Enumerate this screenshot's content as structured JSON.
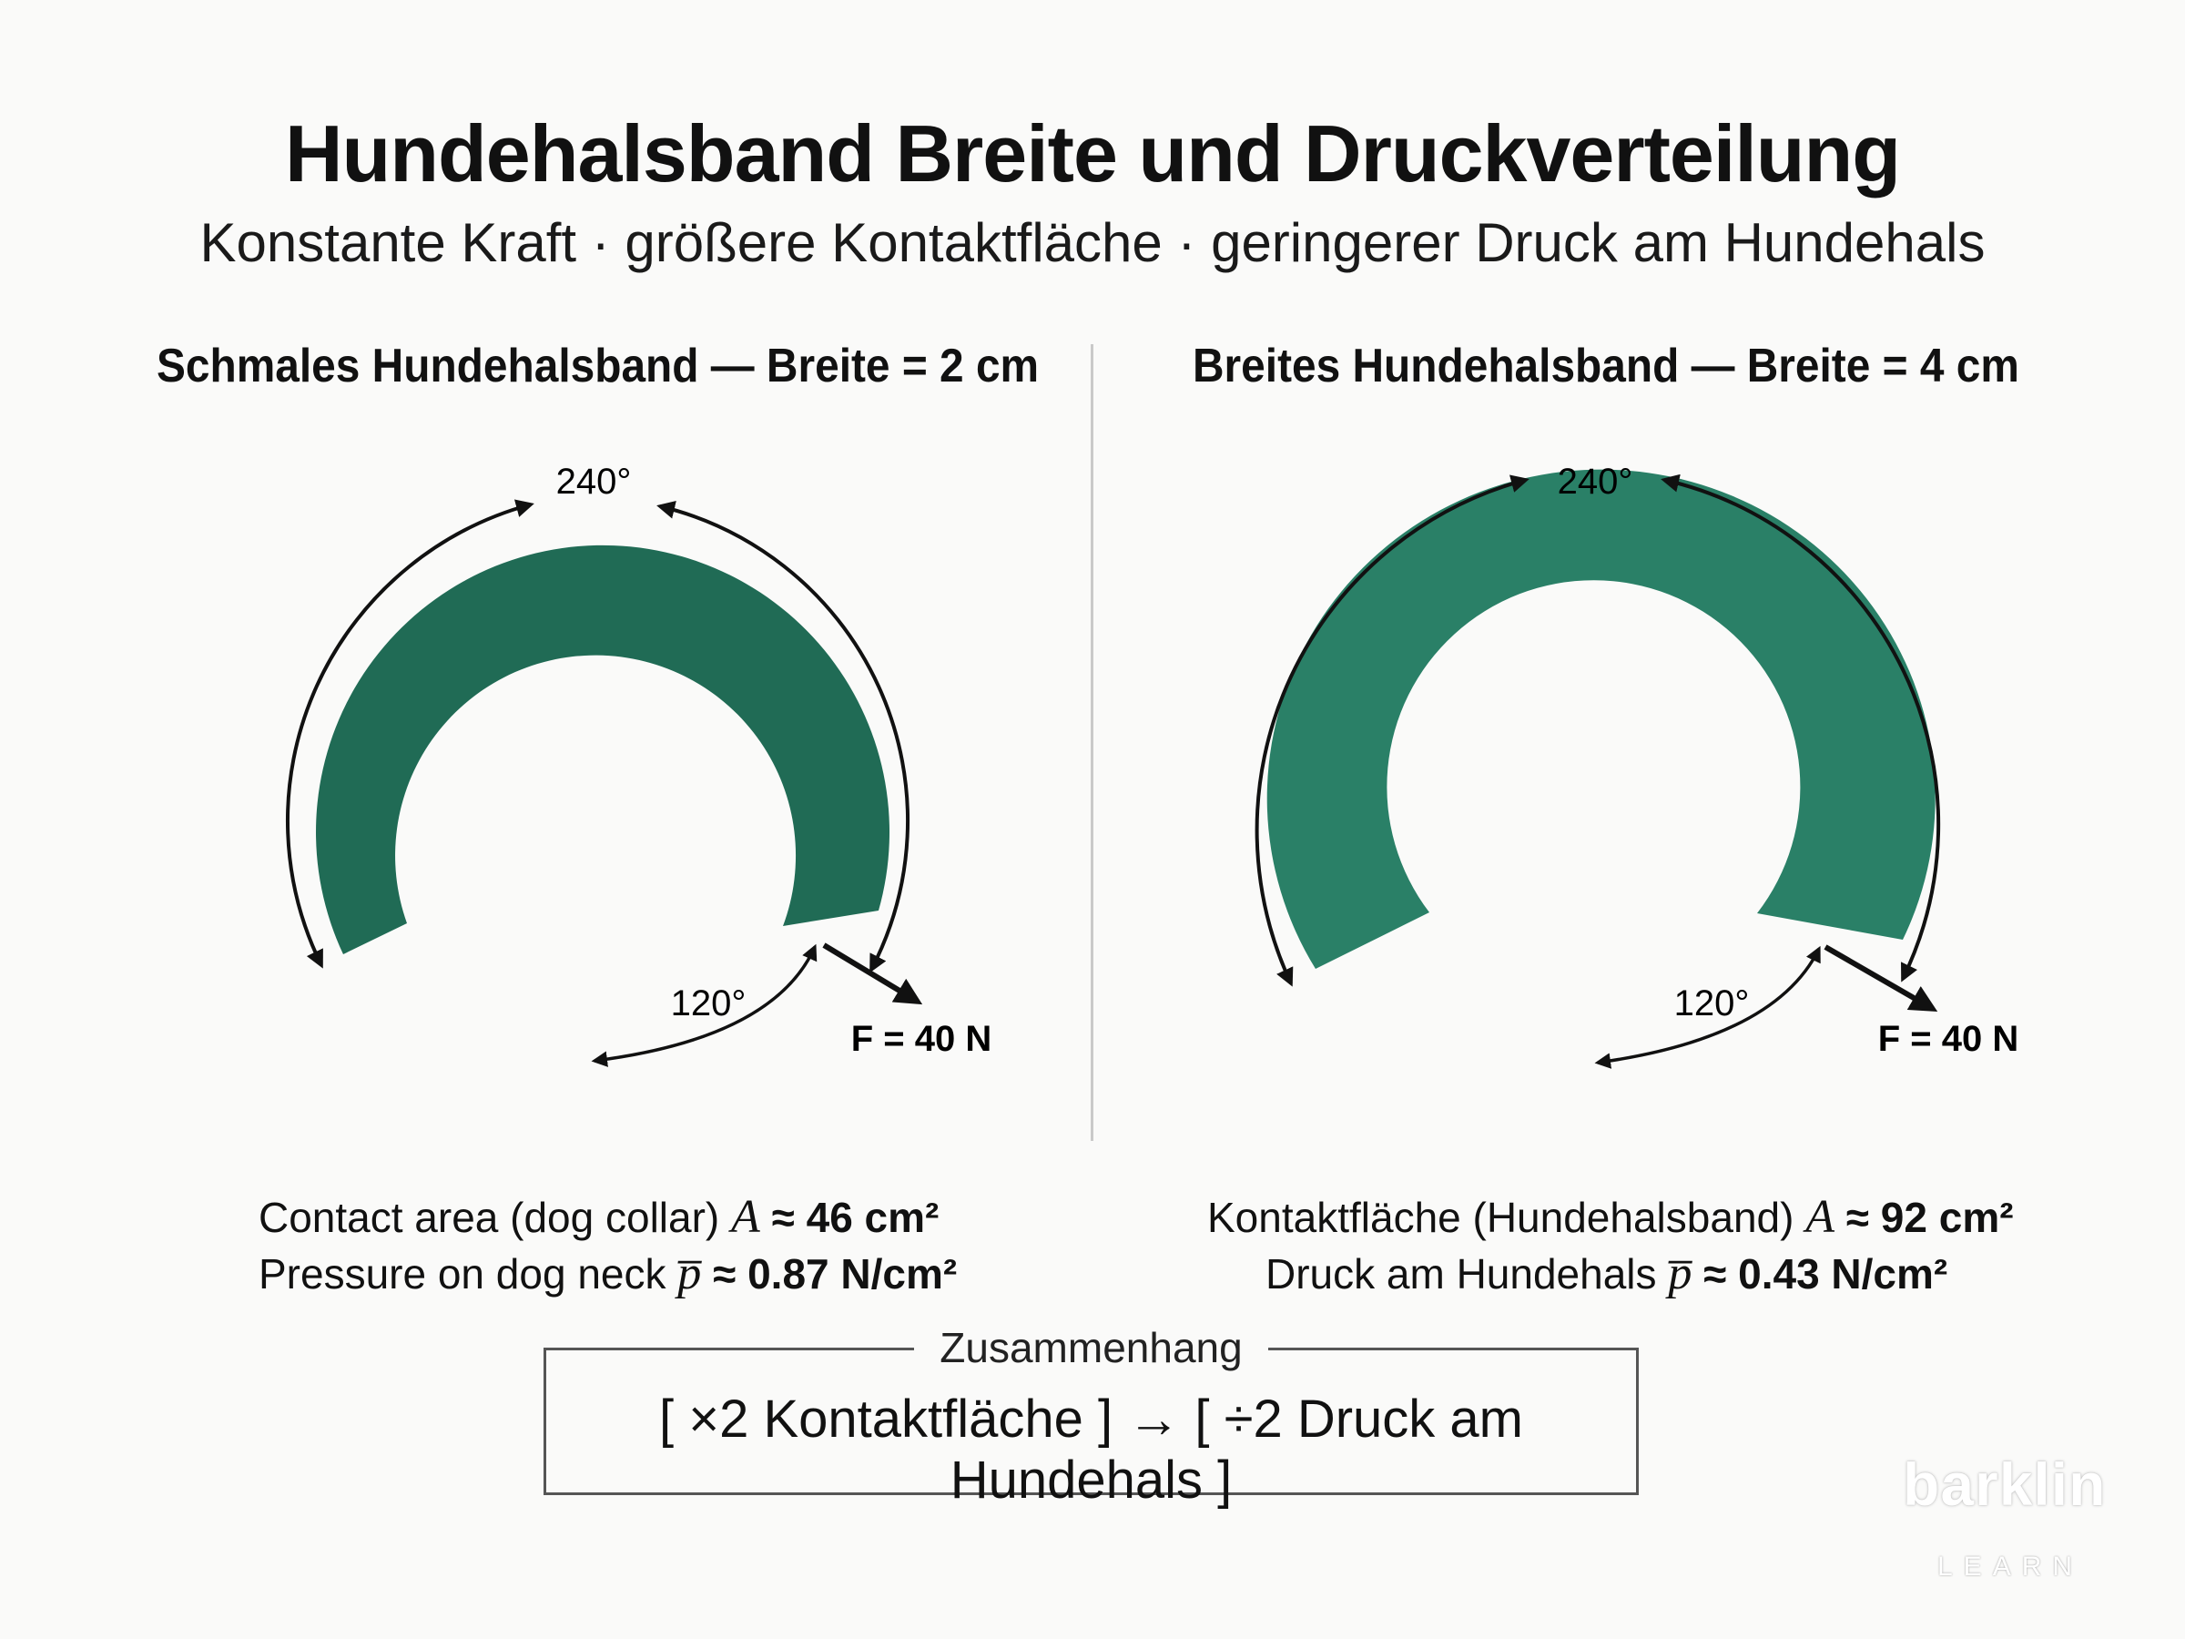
{
  "title": "Hundehalsband Breite und Druckverteilung",
  "subtitle": "Konstante Kraft · größere Kontaktfläche · geringerer Druck am Hundehals",
  "colors": {
    "collar": "#206b55",
    "collar_wide": "#2a8067",
    "text": "#111111",
    "divider": "#c9c9c9"
  },
  "left_panel": {
    "heading": "Schmales Hundehalsband — Breite = 2 cm",
    "arc_label": "240°",
    "gap_label": "120°",
    "force_label": "F = 40 N",
    "area_label": "Contact area (dog collar)",
    "area_symbol": "A",
    "area_value": "≈ 46 cm²",
    "pressure_label": "Pressure on dog neck",
    "pressure_symbol": "p̅",
    "pressure_value": "≈ 0.87 N/cm²"
  },
  "right_panel": {
    "heading": "Breites Hundehalsband — Breite = 4 cm",
    "arc_label": "240°",
    "gap_label": "120°",
    "force_label": "F = 40 N",
    "area_label": "Kontaktfläche (Hundehalsband)",
    "area_symbol": "A",
    "area_value": "≈ 92 cm²",
    "pressure_label": "Druck am Hundehals",
    "pressure_symbol": "p̅",
    "pressure_value": "≈ 0.43 N/cm²"
  },
  "relation": {
    "label": "Zusammenhang",
    "text": "[ ×2 Kontaktfläche ] → [ ÷2 Druck am Hundehals ]"
  },
  "brand": {
    "name": "barklin",
    "sub": "LEARN"
  }
}
